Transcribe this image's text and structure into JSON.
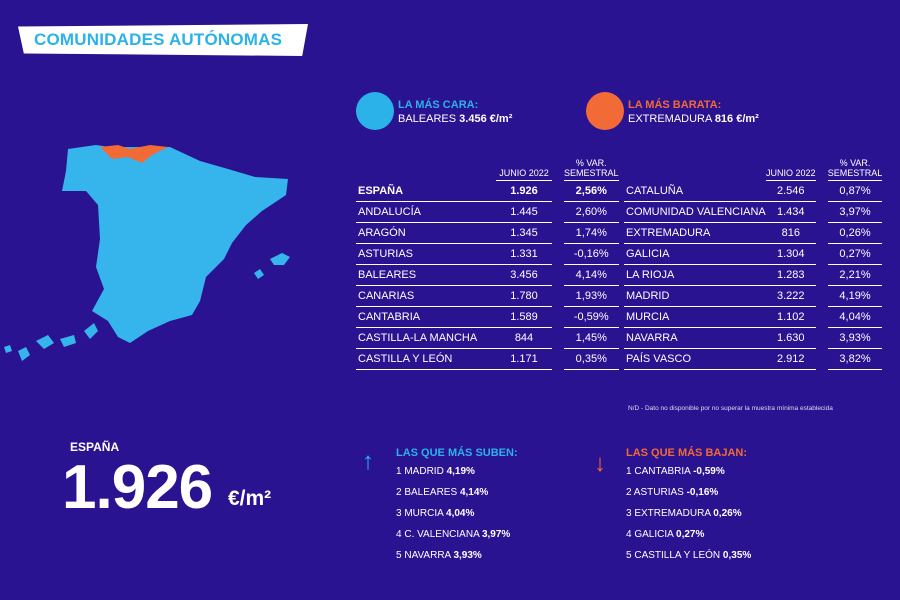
{
  "header": {
    "title": "COMUNIDADES AUTÓNOMAS"
  },
  "colors": {
    "background": "#2a1391",
    "cara": "#2bb3e9",
    "barata": "#f26a35",
    "text": "#ffffff"
  },
  "legend": {
    "cara": {
      "label": "LA MÁS CARA:",
      "region": "BALEARES",
      "value": "3.456 €/m²"
    },
    "barata": {
      "label": "LA MÁS BARATA:",
      "region": "EXTREMADURA",
      "value": "816 €/m²"
    }
  },
  "table_headers": {
    "col1": "JUNIO 2022",
    "col2": "% VAR. SEMESTRAL"
  },
  "left_table": [
    {
      "name": "ESPAÑA",
      "price": "1.926",
      "var": "2,56%"
    },
    {
      "name": "ANDALUCÍA",
      "price": "1.445",
      "var": "2,60%"
    },
    {
      "name": "ARAGÓN",
      "price": "1.345",
      "var": "1,74%"
    },
    {
      "name": "ASTURIAS",
      "price": "1.331",
      "var": "-0,16%"
    },
    {
      "name": "BALEARES",
      "price": "3.456",
      "var": "4,14%"
    },
    {
      "name": "CANARIAS",
      "price": "1.780",
      "var": "1,93%"
    },
    {
      "name": "CANTABRIA",
      "price": "1.589",
      "var": "-0,59%"
    },
    {
      "name": "CASTILLA-LA MANCHA",
      "price": "844",
      "var": "1,45%"
    },
    {
      "name": "CASTILLA Y LEÓN",
      "price": "1.171",
      "var": "0,35%"
    }
  ],
  "right_table": [
    {
      "name": "CATALUÑA",
      "price": "2.546",
      "var": "0,87%"
    },
    {
      "name": "COMUNIDAD VALENCIANA",
      "price": "1.434",
      "var": "3,97%"
    },
    {
      "name": "EXTREMADURA",
      "price": "816",
      "var": "0,26%"
    },
    {
      "name": "GALICIA",
      "price": "1.304",
      "var": "0,27%"
    },
    {
      "name": "LA RIOJA",
      "price": "1.283",
      "var": "2,21%"
    },
    {
      "name": "MADRID",
      "price": "3.222",
      "var": "4,19%"
    },
    {
      "name": "MURCIA",
      "price": "1.102",
      "var": "4,04%"
    },
    {
      "name": "NAVARRA",
      "price": "1.630",
      "var": "3,93%"
    },
    {
      "name": "PAÍS VASCO",
      "price": "2.912",
      "var": "3,82%"
    }
  ],
  "footnote": "N/D - Dato no disponible por no superar la muestra mínima establecida",
  "espana": {
    "label": "ESPAÑA",
    "value": "1.926",
    "unit": "€/m²"
  },
  "suben": {
    "title": "LAS QUE MÁS SUBEN:",
    "items": [
      {
        "rank": "1",
        "name": "MADRID",
        "value": "4,19%"
      },
      {
        "rank": "2",
        "name": "BALEARES",
        "value": "4,14%"
      },
      {
        "rank": "3",
        "name": "MURCIA",
        "value": "4,04%"
      },
      {
        "rank": "4",
        "name": "C. VALENCIANA",
        "value": "3,97%"
      },
      {
        "rank": "5",
        "name": "NAVARRA",
        "value": "3,93%"
      }
    ]
  },
  "bajan": {
    "title": "LAS QUE MÁS BAJAN:",
    "items": [
      {
        "rank": "1",
        "name": "CANTABRIA",
        "value": "-0,59%"
      },
      {
        "rank": "2",
        "name": "ASTURIAS",
        "value": "-0,16%"
      },
      {
        "rank": "3",
        "name": "EXTREMADURA",
        "value": "0,26%"
      },
      {
        "rank": "4",
        "name": "GALICIA",
        "value": "0,27%"
      },
      {
        "rank": "5",
        "name": "CASTILLA Y LEÓN",
        "value": "0,35%"
      }
    ]
  },
  "icons": {
    "up": "arrow-up-icon",
    "down": "arrow-down-icon"
  }
}
